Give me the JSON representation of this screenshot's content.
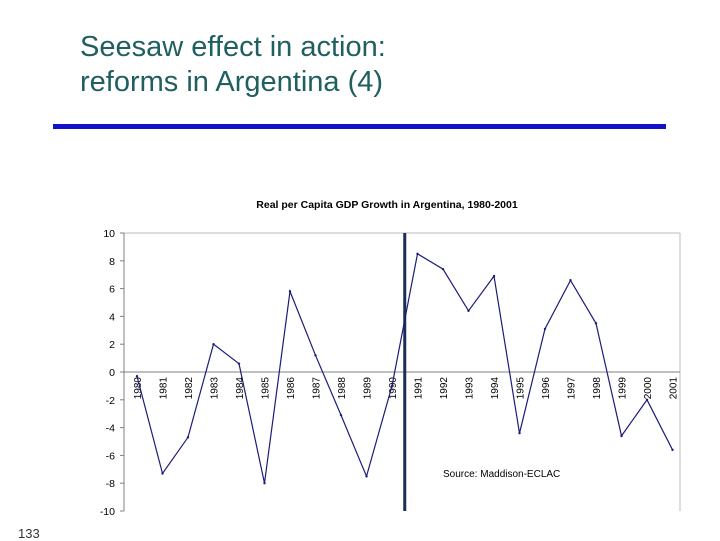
{
  "slide": {
    "title_line1": "Seesaw effect in action:",
    "title_line2": "reforms in Argentina (4)",
    "page_number": "133"
  },
  "colors": {
    "title": "#1f5f5f",
    "rule": "#1212c8",
    "series": "#1c1c7a",
    "marker_line": "#1a2e55",
    "grid": "#bbbbbb"
  },
  "chart_data": {
    "type": "line",
    "title": "Real per Capita GDP Growth in Argentina, 1980-2001",
    "annotation": "Source: Maddison-ECLAC",
    "x": [
      "1980",
      "1981",
      "1982",
      "1983",
      "1984",
      "1985",
      "1986",
      "1987",
      "1988",
      "1989",
      "1990",
      "1991",
      "1992",
      "1993",
      "1994",
      "1995",
      "1996",
      "1997",
      "1998",
      "1999",
      "2000",
      "2001"
    ],
    "values": [
      -0.3,
      -7.3,
      -4.7,
      2.0,
      0.6,
      -8.0,
      5.8,
      1.2,
      -3.1,
      -7.5,
      -1.0,
      8.5,
      7.4,
      4.4,
      6.9,
      -4.4,
      3.1,
      6.6,
      3.5,
      -4.6,
      -2.0,
      -5.6
    ],
    "marker_between": [
      "1990",
      "1991"
    ],
    "ylim": [
      -10,
      10
    ],
    "yticks": [
      10,
      8,
      6,
      4,
      2,
      0,
      -2,
      -4,
      -6,
      -8,
      -10
    ],
    "grid": false,
    "legend": "none"
  }
}
